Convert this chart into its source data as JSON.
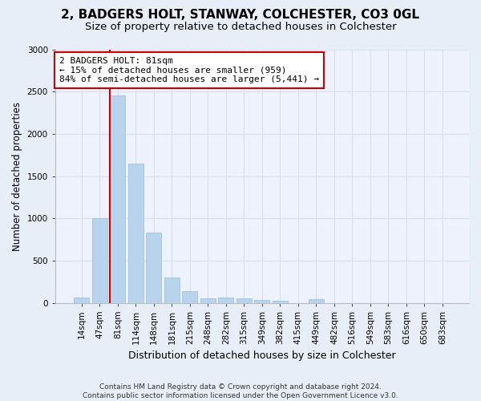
{
  "title1": "2, BADGERS HOLT, STANWAY, COLCHESTER, CO3 0GL",
  "title2": "Size of property relative to detached houses in Colchester",
  "xlabel": "Distribution of detached houses by size in Colchester",
  "ylabel": "Number of detached properties",
  "categories": [
    "14sqm",
    "47sqm",
    "81sqm",
    "114sqm",
    "148sqm",
    "181sqm",
    "215sqm",
    "248sqm",
    "282sqm",
    "315sqm",
    "349sqm",
    "382sqm",
    "415sqm",
    "449sqm",
    "482sqm",
    "516sqm",
    "549sqm",
    "583sqm",
    "616sqm",
    "650sqm",
    "683sqm"
  ],
  "values": [
    60,
    1000,
    2450,
    1650,
    830,
    300,
    140,
    55,
    60,
    55,
    30,
    20,
    0,
    40,
    0,
    0,
    0,
    0,
    0,
    0,
    0
  ],
  "bar_color": "#b8d4ec",
  "bar_edge_color": "#9abcd8",
  "highlight_index": 2,
  "highlight_line_color": "#cc0000",
  "annotation_text": "2 BADGERS HOLT: 81sqm\n← 15% of detached houses are smaller (959)\n84% of semi-detached houses are larger (5,441) →",
  "annotation_box_facecolor": "#ffffff",
  "annotation_box_edgecolor": "#cc0000",
  "ylim": [
    0,
    3000
  ],
  "yticks": [
    0,
    500,
    1000,
    1500,
    2000,
    2500,
    3000
  ],
  "footer_text": "Contains HM Land Registry data © Crown copyright and database right 2024.\nContains public sector information licensed under the Open Government Licence v3.0.",
  "bg_color": "#e8eef8",
  "plot_bg_color": "#eef2fc",
  "grid_color": "#d8dff0",
  "title1_fontsize": 11,
  "title2_fontsize": 9.5,
  "tick_fontsize": 7.5,
  "ylabel_fontsize": 8.5,
  "xlabel_fontsize": 9,
  "footer_fontsize": 6.5,
  "annotation_fontsize": 8
}
